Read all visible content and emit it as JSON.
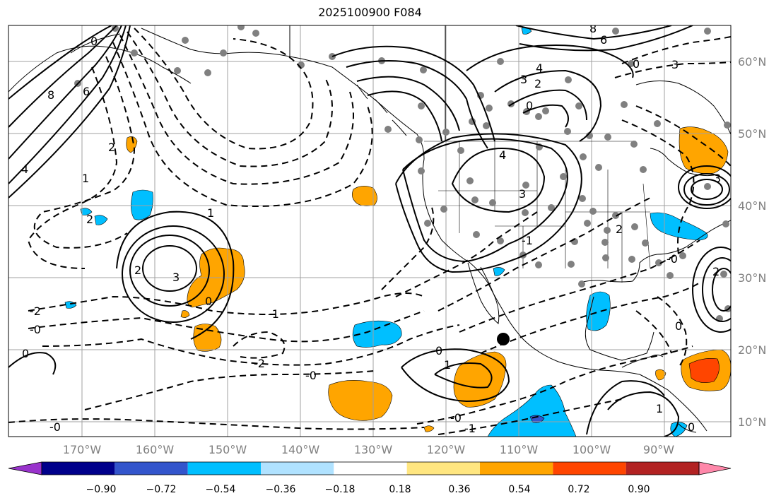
{
  "title": "2025100900 F084",
  "lon_ticks": [
    "170°W",
    "160°W",
    "150°W",
    "140°W",
    "130°W",
    "120°W",
    "110°W",
    "100°W",
    "90°W"
  ],
  "lat_ticks": [
    "60°N",
    "50°N",
    "40°N",
    "30°N",
    "20°N",
    "10°N"
  ],
  "colorbar": {
    "tick_labels": [
      "−0.90",
      "−0.72",
      "−0.54",
      "−0.36",
      "−0.18",
      "0.18",
      "0.36",
      "0.54",
      "0.72",
      "0.90"
    ],
    "colors": [
      "#9933cc",
      "#00008b",
      "#3355cc",
      "#00bfff",
      "#b0e2ff",
      "#ffffff",
      "#ffe680",
      "#ffa500",
      "#ff4500",
      "#b22222",
      "#ff88aa"
    ]
  },
  "contour_labels": [
    "8",
    "6",
    "0",
    "4",
    "2",
    "1",
    "1",
    "2",
    "3",
    "2",
    "0",
    "-0",
    "-2",
    "-1",
    "-2",
    "-0",
    "-0",
    "0",
    "1",
    "-0",
    "0",
    "-1",
    "4",
    "3",
    "2",
    "0",
    "3",
    "4",
    "6",
    "8",
    "3",
    "0",
    "2",
    "1",
    "0",
    "-1",
    "0",
    "-0",
    "2",
    "3"
  ]
}
